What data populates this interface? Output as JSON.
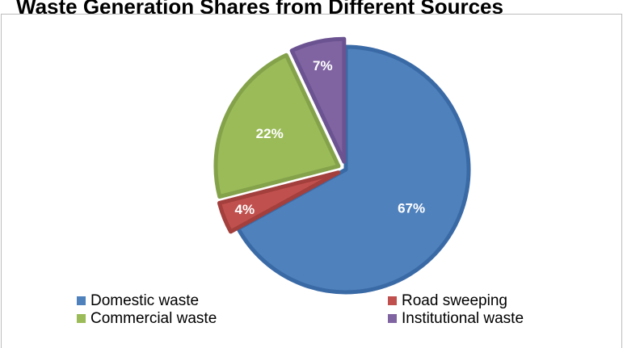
{
  "chart_data": {
    "type": "pie",
    "title": "Waste Generation Shares from Different Sources",
    "categories": [
      "Domestic waste",
      "Road sweeping",
      "Commercial waste",
      "Institutional waste"
    ],
    "values": [
      67,
      4,
      22,
      7
    ],
    "data_labels": [
      "67%",
      "4%",
      "22%",
      "7%"
    ],
    "colors": [
      "#4f81bd",
      "#c0504d",
      "#9bbb59",
      "#8064a2"
    ],
    "border_colors": [
      "#3a6aa6",
      "#a33f3c",
      "#84a24a",
      "#6b5290"
    ],
    "legend_position": "bottom",
    "exploded_slices": [
      "Road sweeping",
      "Commercial waste",
      "Institutional waste"
    ]
  }
}
